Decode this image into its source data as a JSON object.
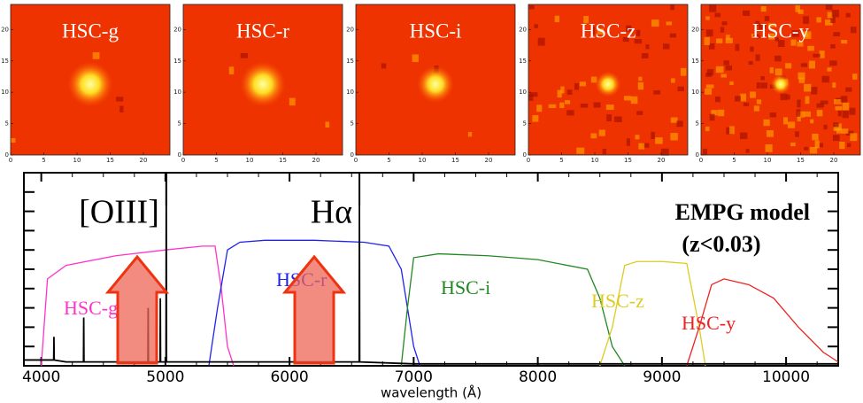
{
  "chart_data": [
    {
      "type": "image",
      "title": "HSC-g",
      "xlim": [
        0,
        24
      ],
      "ylim": [
        0,
        24
      ],
      "xticks": [
        0,
        5,
        10,
        15,
        20
      ],
      "yticks": [
        0,
        5,
        10,
        15,
        20
      ]
    },
    {
      "type": "image",
      "title": "HSC-r",
      "xlim": [
        0,
        24
      ],
      "ylim": [
        0,
        24
      ],
      "xticks": [
        0,
        5,
        10,
        15,
        20
      ],
      "yticks": [
        0,
        5,
        10,
        15,
        20
      ]
    },
    {
      "type": "image",
      "title": "HSC-i",
      "xlim": [
        0,
        24
      ],
      "ylim": [
        0,
        24
      ],
      "xticks": [
        0,
        5,
        10,
        15,
        20
      ],
      "yticks": [
        0,
        5,
        10,
        15,
        20
      ]
    },
    {
      "type": "image",
      "title": "HSC-z",
      "xlim": [
        0,
        24
      ],
      "ylim": [
        0,
        24
      ],
      "xticks": [
        0,
        5,
        10,
        15,
        20
      ],
      "yticks": [
        0,
        5,
        10,
        15,
        20
      ]
    },
    {
      "type": "image",
      "title": "HSC-y",
      "xlim": [
        0,
        24
      ],
      "ylim": [
        0,
        24
      ],
      "xticks": [
        0,
        5,
        10,
        15,
        20
      ],
      "yticks": [
        0,
        5,
        10,
        15,
        20
      ]
    },
    {
      "type": "line",
      "xlabel": "wavelength (Å)",
      "xlim": [
        3860,
        10420
      ],
      "ylim": [
        0,
        1
      ],
      "xticks": [
        4000,
        5000,
        6000,
        7000,
        8000,
        9000,
        10000
      ],
      "yticks": [
        0.1,
        0.2,
        0.3,
        0.4,
        0.5,
        0.6,
        0.7,
        0.8,
        0.9
      ],
      "annotations": [
        "EMPG model",
        "(z<0.03)"
      ],
      "emission_lines": [
        {
          "label": "[OIII]",
          "x": 5007
        },
        {
          "label": "Hα",
          "x": 6563
        }
      ],
      "series": [
        {
          "name": "HSC-g",
          "color": "#ff33cc",
          "x": [
            4000,
            4050,
            4200,
            4600,
            5000,
            5300,
            5400,
            5450,
            5500,
            5550
          ],
          "values": [
            0,
            0.45,
            0.52,
            0.57,
            0.6,
            0.62,
            0.62,
            0.4,
            0.1,
            0
          ]
        },
        {
          "name": "HSC-r",
          "color": "#2222ee",
          "x": [
            5350,
            5420,
            5500,
            5600,
            5800,
            6200,
            6600,
            6800,
            6900,
            7000,
            7050
          ],
          "values": [
            0,
            0.3,
            0.6,
            0.64,
            0.65,
            0.65,
            0.64,
            0.62,
            0.5,
            0.1,
            0
          ]
        },
        {
          "name": "HSC-i",
          "color": "#228822",
          "x": [
            6900,
            6950,
            7000,
            7200,
            7600,
            8000,
            8400,
            8500,
            8600,
            8700
          ],
          "values": [
            0,
            0.3,
            0.56,
            0.58,
            0.57,
            0.55,
            0.5,
            0.35,
            0.1,
            0
          ]
        },
        {
          "name": "HSC-z",
          "color": "#ddcc22",
          "x": [
            8500,
            8600,
            8700,
            8800,
            9000,
            9200,
            9300,
            9350
          ],
          "values": [
            0,
            0.2,
            0.52,
            0.54,
            0.54,
            0.53,
            0.2,
            0
          ]
        },
        {
          "name": "HSC-y",
          "color": "#ee2222",
          "x": [
            9200,
            9300,
            9400,
            9500,
            9700,
            9900,
            10100,
            10300,
            10420
          ],
          "values": [
            0,
            0.2,
            0.42,
            0.45,
            0.42,
            0.35,
            0.2,
            0.07,
            0.02
          ]
        },
        {
          "color": "#000000",
          "x": [
            3860,
            4000,
            4100,
            4102,
            4104,
            4200,
            4340,
            4342,
            4344,
            4500,
            4859,
            4861,
            4863,
            4957,
            4959,
            4961,
            5005,
            5007,
            5009,
            5200,
            6000,
            6561,
            6563,
            6565,
            7000,
            10420
          ],
          "values": [
            0.03,
            0.03,
            0.03,
            0.15,
            0.03,
            0.02,
            0.02,
            0.25,
            0.02,
            0.02,
            0.02,
            0.3,
            0.02,
            0.02,
            0.35,
            0.02,
            0.02,
            1.0,
            0.02,
            0.02,
            0.02,
            0.02,
            0.83,
            0.02,
            0.01,
            0.01
          ]
        }
      ]
    }
  ]
}
